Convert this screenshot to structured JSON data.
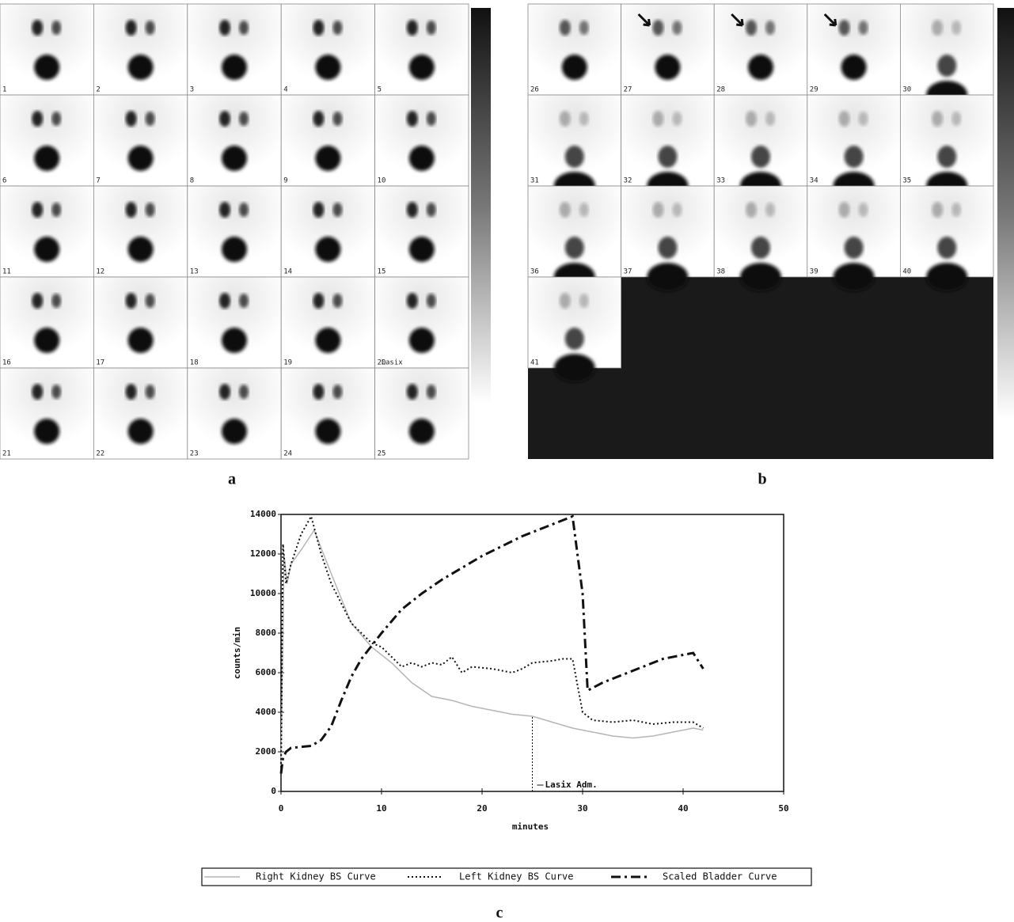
{
  "panel_labels": [
    "a",
    "b",
    "c"
  ],
  "panel_a": {
    "frames": [
      "1",
      "2",
      "3",
      "4",
      "5",
      "6",
      "7",
      "8",
      "9",
      "10",
      "11",
      "12",
      "13",
      "14",
      "15",
      "16",
      "17",
      "18",
      "19",
      "20",
      "21",
      "22",
      "23",
      "24",
      "25"
    ],
    "note": "Lasix"
  },
  "panel_b": {
    "frames": [
      "26",
      "27",
      "28",
      "29",
      "30",
      "31",
      "32",
      "33",
      "34",
      "35",
      "36",
      "37",
      "38",
      "39",
      "40",
      "41"
    ]
  },
  "chart_data": {
    "type": "line",
    "x_label": "minutes",
    "y_label": "counts/min",
    "xlim": [
      0,
      50
    ],
    "xticks": [
      0,
      10,
      20,
      30,
      40,
      50
    ],
    "ylim": [
      0,
      14000
    ],
    "yticks": [
      0,
      2000,
      4000,
      6000,
      8000,
      10000,
      12000,
      14000
    ],
    "legend": "bottom",
    "annotations": [
      {
        "text": "Lasix Adm.",
        "x": 25
      }
    ],
    "series": [
      {
        "name": "Right Kidney BS Curve",
        "color": "#b5b5b5",
        "style": "solid",
        "x": [
          0,
          0.3,
          0.6,
          1,
          2,
          3.3,
          5,
          7,
          9,
          11,
          13,
          15,
          17,
          19,
          21,
          23,
          25,
          27,
          29,
          31,
          33,
          35,
          37,
          39,
          41,
          42
        ],
        "values": [
          1000,
          12000,
          10500,
          11500,
          12200,
          13200,
          11000,
          8500,
          7300,
          6500,
          5500,
          4800,
          4600,
          4300,
          4100,
          3900,
          3800,
          3500,
          3200,
          3000,
          2800,
          2700,
          2800,
          3000,
          3200,
          3100
        ]
      },
      {
        "name": "Left Kidney BS Curve",
        "color": "#111111",
        "style": "dotted",
        "x": [
          0,
          0.2,
          0.5,
          1,
          2,
          3,
          4,
          5,
          7,
          9,
          10,
          11,
          12,
          13,
          14,
          15,
          16,
          17,
          18,
          19,
          21,
          23,
          24,
          25,
          27,
          28,
          29,
          30,
          31,
          33,
          35,
          37,
          39,
          41,
          42
        ],
        "values": [
          1000,
          12500,
          10500,
          11500,
          13000,
          13900,
          12000,
          10500,
          8500,
          7500,
          7300,
          6800,
          6300,
          6500,
          6300,
          6500,
          6400,
          6800,
          6000,
          6300,
          6200,
          6000,
          6200,
          6500,
          6600,
          6700,
          6700,
          4000,
          3600,
          3500,
          3600,
          3400,
          3500,
          3500,
          3200
        ]
      },
      {
        "name": "Scaled Bladder Curve",
        "color": "#111111",
        "style": "dashdot",
        "x": [
          0,
          0.2,
          0.5,
          1,
          3,
          4,
          5,
          6,
          7,
          8,
          10,
          12,
          14,
          16,
          18,
          20,
          22,
          24,
          26,
          28,
          29,
          30,
          30.5,
          32,
          34,
          36,
          38,
          40,
          41,
          42
        ],
        "values": [
          900,
          1700,
          2000,
          2200,
          2300,
          2600,
          3300,
          4600,
          5800,
          6700,
          8000,
          9200,
          10000,
          10700,
          11300,
          11900,
          12400,
          12900,
          13300,
          13700,
          13900,
          10000,
          5100,
          5500,
          5900,
          6300,
          6700,
          6900,
          7000,
          6200
        ]
      }
    ]
  }
}
